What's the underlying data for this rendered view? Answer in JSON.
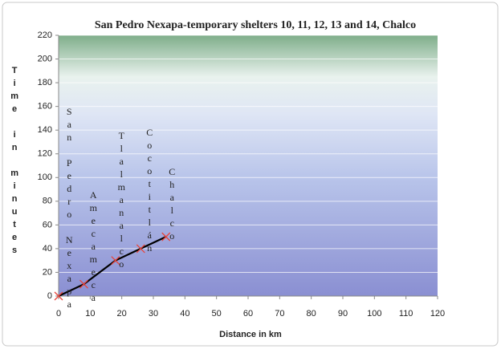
{
  "chart_data": {
    "type": "line",
    "title": "San Pedro Nexapa-temporary shelters 10, 11, 12, 13 and 14, Chalco",
    "x_label": "Distance in km",
    "y_label": "Time in minutes",
    "x": [
      0,
      8,
      18,
      26,
      34
    ],
    "series": [
      {
        "name": "Time",
        "color": "#000000",
        "marker_color": "#e8453c",
        "values": [
          0,
          10,
          30,
          40,
          50
        ]
      }
    ],
    "point_labels": [
      "San Pedro Nexapa",
      "Amecameca",
      "Tlalmanalco",
      "Cocotitlán",
      "Chalco"
    ],
    "xlim": [
      0,
      120
    ],
    "xticks": [
      0,
      10,
      20,
      30,
      40,
      50,
      60,
      70,
      80,
      90,
      100,
      110,
      120
    ],
    "ylim": [
      0,
      220
    ],
    "yticks": [
      0,
      20,
      40,
      60,
      80,
      100,
      120,
      140,
      160,
      180,
      200,
      220
    ],
    "grid": true
  }
}
